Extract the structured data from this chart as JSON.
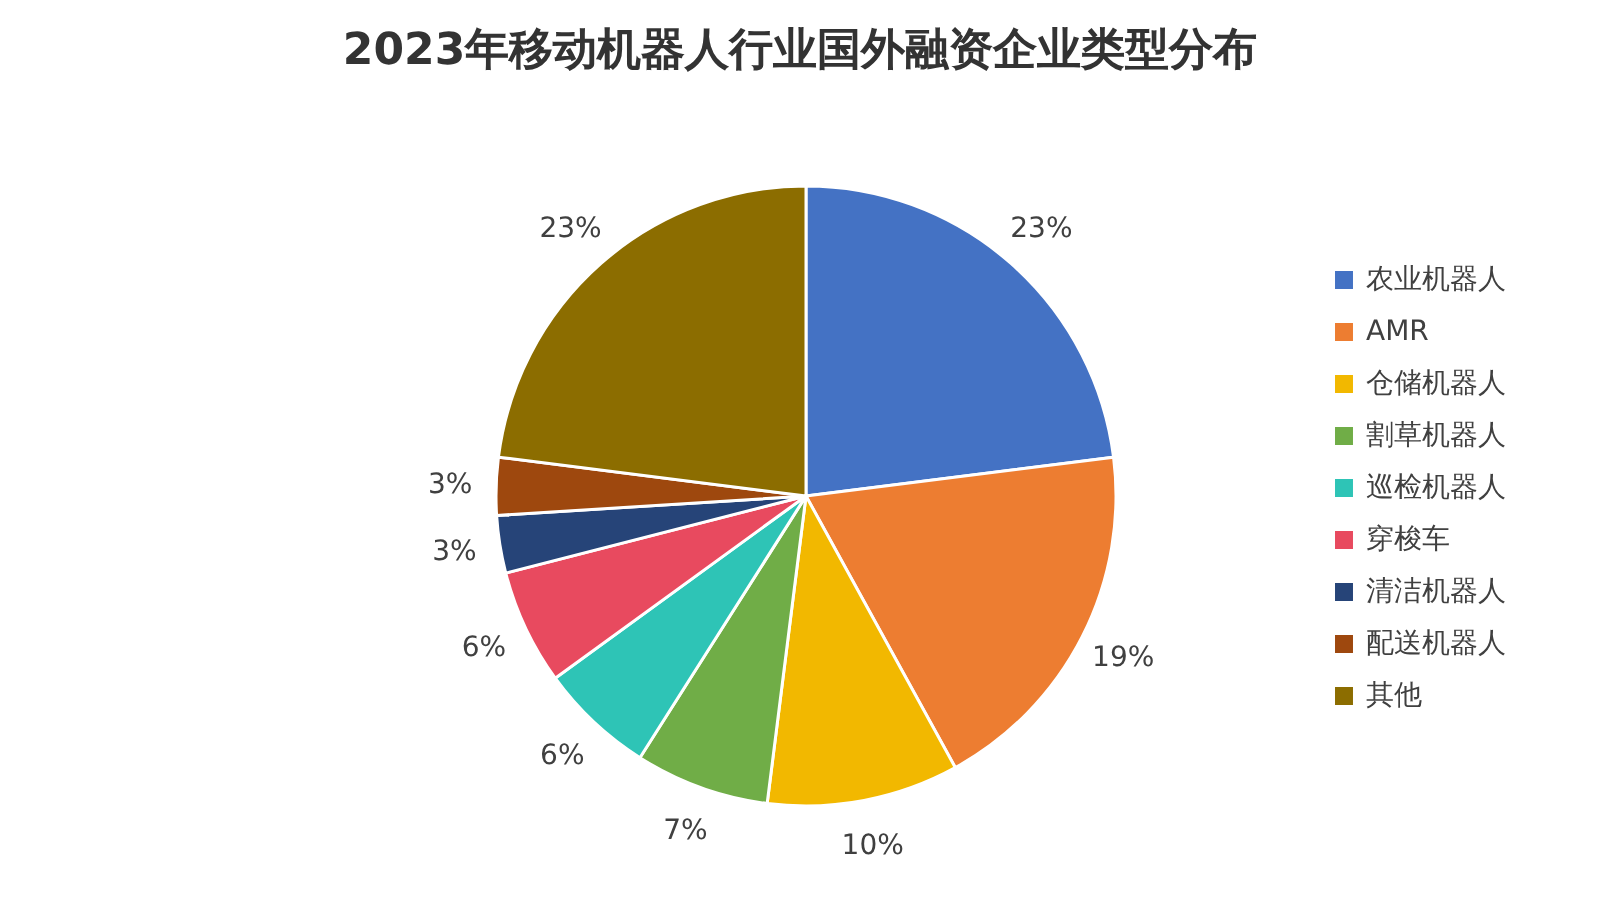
{
  "chart_data": {
    "type": "pie",
    "title": "2023年移动机器人行业国外融资企业类型分布",
    "categories": [
      "农业机器人",
      "AMR",
      "仓储机器人",
      "割草机器人",
      "巡检机器人",
      "穿梭车",
      "清洁机器人",
      "配送机器人",
      "其他"
    ],
    "values": [
      23,
      19,
      10,
      7,
      6,
      6,
      3,
      3,
      23
    ],
    "value_labels": [
      "23%",
      "19%",
      "10%",
      "7%",
      "6%",
      "6%",
      "3%",
      "3%",
      "23%"
    ],
    "colors": [
      "#4472c4",
      "#ed7d31",
      "#f2b800",
      "#70ad47",
      "#2ec4b6",
      "#e84a5f",
      "#264478",
      "#9e480e",
      "#8c6d00"
    ],
    "legend": "right"
  }
}
